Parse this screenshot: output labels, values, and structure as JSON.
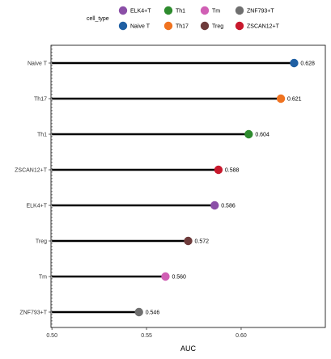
{
  "chart_data": {
    "type": "lollipop",
    "orientation": "horizontal",
    "xlabel": "AUC",
    "xlim": [
      0.4995,
      0.6445
    ],
    "xticks": [
      "0.50",
      "0.55",
      "0.60"
    ],
    "xtick_values": [
      0.5,
      0.55,
      0.6
    ],
    "reference_line": 0.5,
    "grid": false,
    "legend": {
      "title": "cell_type",
      "placement": "top",
      "entries": [
        {
          "name": "ELK4+T",
          "color": "#8b4fa7"
        },
        {
          "name": "Naive T",
          "color": "#1f5fa3"
        },
        {
          "name": "Th1",
          "color": "#2e8b2e"
        },
        {
          "name": "Th17",
          "color": "#f07320"
        },
        {
          "name": "Tm",
          "color": "#d05fb4"
        },
        {
          "name": "Treg",
          "color": "#6e3b3b"
        },
        {
          "name": "ZNF793+T",
          "color": "#6f6f6f"
        },
        {
          "name": "ZSCAN12+T",
          "color": "#c8192d"
        }
      ]
    },
    "points": [
      {
        "category": "Naive T",
        "value": 0.628,
        "label": "0.628",
        "color": "#1f5fa3"
      },
      {
        "category": "Th17",
        "value": 0.621,
        "label": "0.621",
        "color": "#f07320"
      },
      {
        "category": "Th1",
        "value": 0.604,
        "label": "0.604",
        "color": "#2e8b2e"
      },
      {
        "category": "ZSCAN12+T",
        "value": 0.588,
        "label": "0.588",
        "color": "#c8192d"
      },
      {
        "category": "ELK4+T",
        "value": 0.586,
        "label": "0.586",
        "color": "#8b4fa7"
      },
      {
        "category": "Treg",
        "value": 0.572,
        "label": "0.572",
        "color": "#6e3b3b"
      },
      {
        "category": "Tm",
        "value": 0.56,
        "label": "0.560",
        "color": "#d05fb4"
      },
      {
        "category": "ZNF793+T",
        "value": 0.546,
        "label": "0.546",
        "color": "#6f6f6f"
      }
    ]
  }
}
